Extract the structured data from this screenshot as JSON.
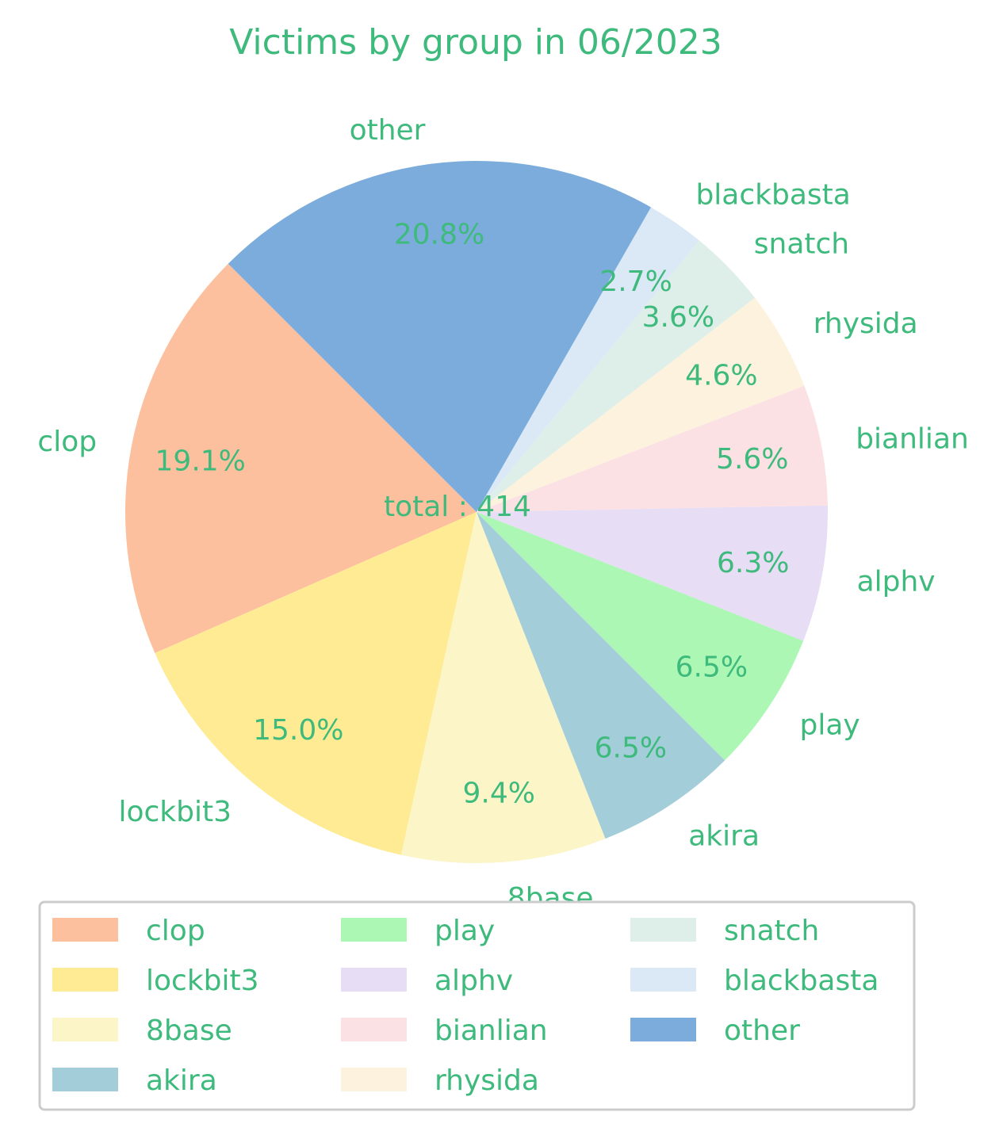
{
  "chart_data": {
    "type": "pie",
    "title": "Victims by group in 06/2023",
    "center_label": "total : 414",
    "text_color": "#3dba7c",
    "legend_placement": "bottom",
    "slices": [
      {
        "label": "clop",
        "percent_label": "19.1%",
        "value": 79,
        "color": "#fdc09e"
      },
      {
        "label": "lockbit3",
        "percent_label": "15.0%",
        "value": 62,
        "color": "#feeb94"
      },
      {
        "label": "8base",
        "percent_label": "9.4%",
        "value": 39,
        "color": "#fbf5c7"
      },
      {
        "label": "akira",
        "percent_label": "6.5%",
        "value": 27,
        "color": "#a3ced9"
      },
      {
        "label": "play",
        "percent_label": "6.5%",
        "value": 27,
        "color": "#adf7b5"
      },
      {
        "label": "alphv",
        "percent_label": "6.3%",
        "value": 26,
        "color": "#e7ddf4"
      },
      {
        "label": "bianlian",
        "percent_label": "5.6%",
        "value": 23,
        "color": "#fbe1e4"
      },
      {
        "label": "rhysida",
        "percent_label": "4.6%",
        "value": 19,
        "color": "#fcf2dd"
      },
      {
        "label": "snatch",
        "percent_label": "3.6%",
        "value": 15,
        "color": "#deeee8"
      },
      {
        "label": "blackbasta",
        "percent_label": "2.7%",
        "value": 11,
        "color": "#dbe9f6"
      },
      {
        "label": "other",
        "percent_label": "20.8%",
        "value": 86,
        "color": "#7bacdb"
      }
    ]
  }
}
